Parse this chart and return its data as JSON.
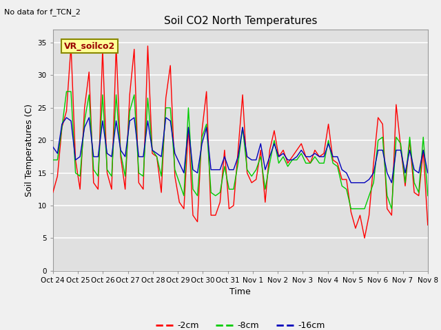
{
  "title": "Soil CO2 North Temperatures",
  "no_data_text": "No data for f_TCN_2",
  "ylabel": "Soil Temperatures (C)",
  "xlabel": "Time",
  "sensor_label": "VR_soilco2",
  "ylim": [
    0,
    37
  ],
  "yticks": [
    0,
    5,
    10,
    15,
    20,
    25,
    30,
    35
  ],
  "x_tick_labels": [
    "Oct 24",
    "Oct 25",
    "Oct 26",
    "Oct 27",
    "Oct 28",
    "Oct 29",
    "Oct 30",
    "Oct 31",
    "Nov 1",
    "Nov 2",
    "Nov 3",
    "Nov 4",
    "Nov 5",
    "Nov 6",
    "Nov 7",
    "Nov 8"
  ],
  "fig_bg_color": "#f0f0f0",
  "plot_bg_color": "#e0e0e0",
  "grid_color": "#ffffff",
  "colors": {
    "2cm": "#ff0000",
    "8cm": "#00cc00",
    "16cm": "#0000bb"
  },
  "legend_labels": [
    "-2cm",
    "-8cm",
    "-16cm"
  ],
  "t2cm": [
    12.0,
    14.5,
    22.0,
    24.5,
    34.5,
    17.0,
    12.5,
    25.0,
    30.5,
    13.5,
    12.5,
    34.0,
    15.0,
    12.5,
    34.5,
    17.5,
    12.5,
    27.0,
    34.0,
    13.5,
    12.5,
    34.5,
    18.0,
    17.5,
    12.0,
    26.5,
    31.5,
    14.5,
    10.5,
    9.5,
    22.0,
    8.5,
    7.5,
    21.5,
    27.5,
    8.5,
    8.5,
    10.5,
    18.5,
    9.5,
    10.0,
    18.5,
    27.0,
    15.0,
    13.5,
    14.0,
    18.5,
    10.5,
    18.5,
    21.5,
    17.5,
    18.5,
    16.5,
    17.5,
    18.5,
    19.5,
    17.5,
    16.5,
    18.5,
    17.5,
    18.0,
    22.5,
    17.0,
    16.5,
    14.0,
    14.0,
    9.0,
    6.5,
    8.5,
    5.0,
    8.5,
    16.5,
    23.5,
    22.5,
    9.5,
    8.5,
    25.5,
    19.0,
    13.0,
    20.0,
    12.0,
    11.5,
    18.5,
    7.0
  ],
  "t8cm": [
    17.0,
    17.0,
    22.0,
    27.5,
    27.5,
    15.0,
    14.5,
    23.0,
    27.0,
    15.5,
    14.5,
    27.0,
    15.5,
    14.5,
    27.0,
    18.0,
    14.5,
    24.5,
    27.0,
    15.0,
    14.5,
    26.5,
    18.5,
    17.5,
    14.5,
    25.0,
    25.0,
    15.5,
    13.5,
    11.5,
    25.0,
    12.5,
    11.5,
    20.5,
    22.5,
    12.0,
    11.5,
    12.0,
    16.0,
    12.5,
    12.5,
    16.5,
    22.0,
    15.5,
    14.5,
    15.5,
    17.5,
    12.5,
    16.5,
    20.0,
    16.5,
    17.5,
    16.0,
    17.0,
    17.0,
    18.0,
    16.5,
    16.5,
    17.5,
    16.5,
    16.5,
    20.0,
    16.5,
    16.0,
    13.0,
    12.5,
    9.5,
    9.5,
    9.5,
    9.5,
    11.5,
    13.5,
    20.0,
    20.5,
    11.5,
    9.5,
    20.5,
    19.5,
    13.5,
    20.5,
    13.5,
    12.0,
    20.5,
    11.5
  ],
  "t16cm": [
    19.0,
    18.0,
    22.5,
    23.5,
    23.0,
    17.0,
    17.5,
    22.0,
    23.5,
    17.5,
    17.5,
    23.0,
    18.0,
    17.5,
    23.0,
    18.5,
    17.5,
    23.0,
    23.5,
    17.5,
    17.5,
    23.0,
    18.5,
    18.0,
    17.5,
    23.5,
    23.0,
    18.0,
    16.5,
    15.0,
    22.0,
    15.5,
    15.0,
    19.5,
    22.0,
    15.5,
    15.5,
    15.5,
    17.5,
    15.5,
    15.5,
    17.5,
    22.0,
    17.5,
    17.0,
    17.0,
    19.5,
    15.5,
    17.5,
    19.5,
    17.5,
    18.0,
    17.0,
    17.0,
    17.5,
    18.5,
    17.5,
    17.5,
    18.0,
    17.5,
    17.5,
    19.5,
    17.5,
    17.5,
    15.5,
    15.0,
    13.5,
    13.5,
    13.5,
    13.5,
    14.0,
    15.0,
    18.5,
    18.5,
    15.0,
    13.5,
    18.5,
    18.5,
    15.0,
    18.5,
    15.5,
    15.0,
    18.5,
    15.0
  ]
}
